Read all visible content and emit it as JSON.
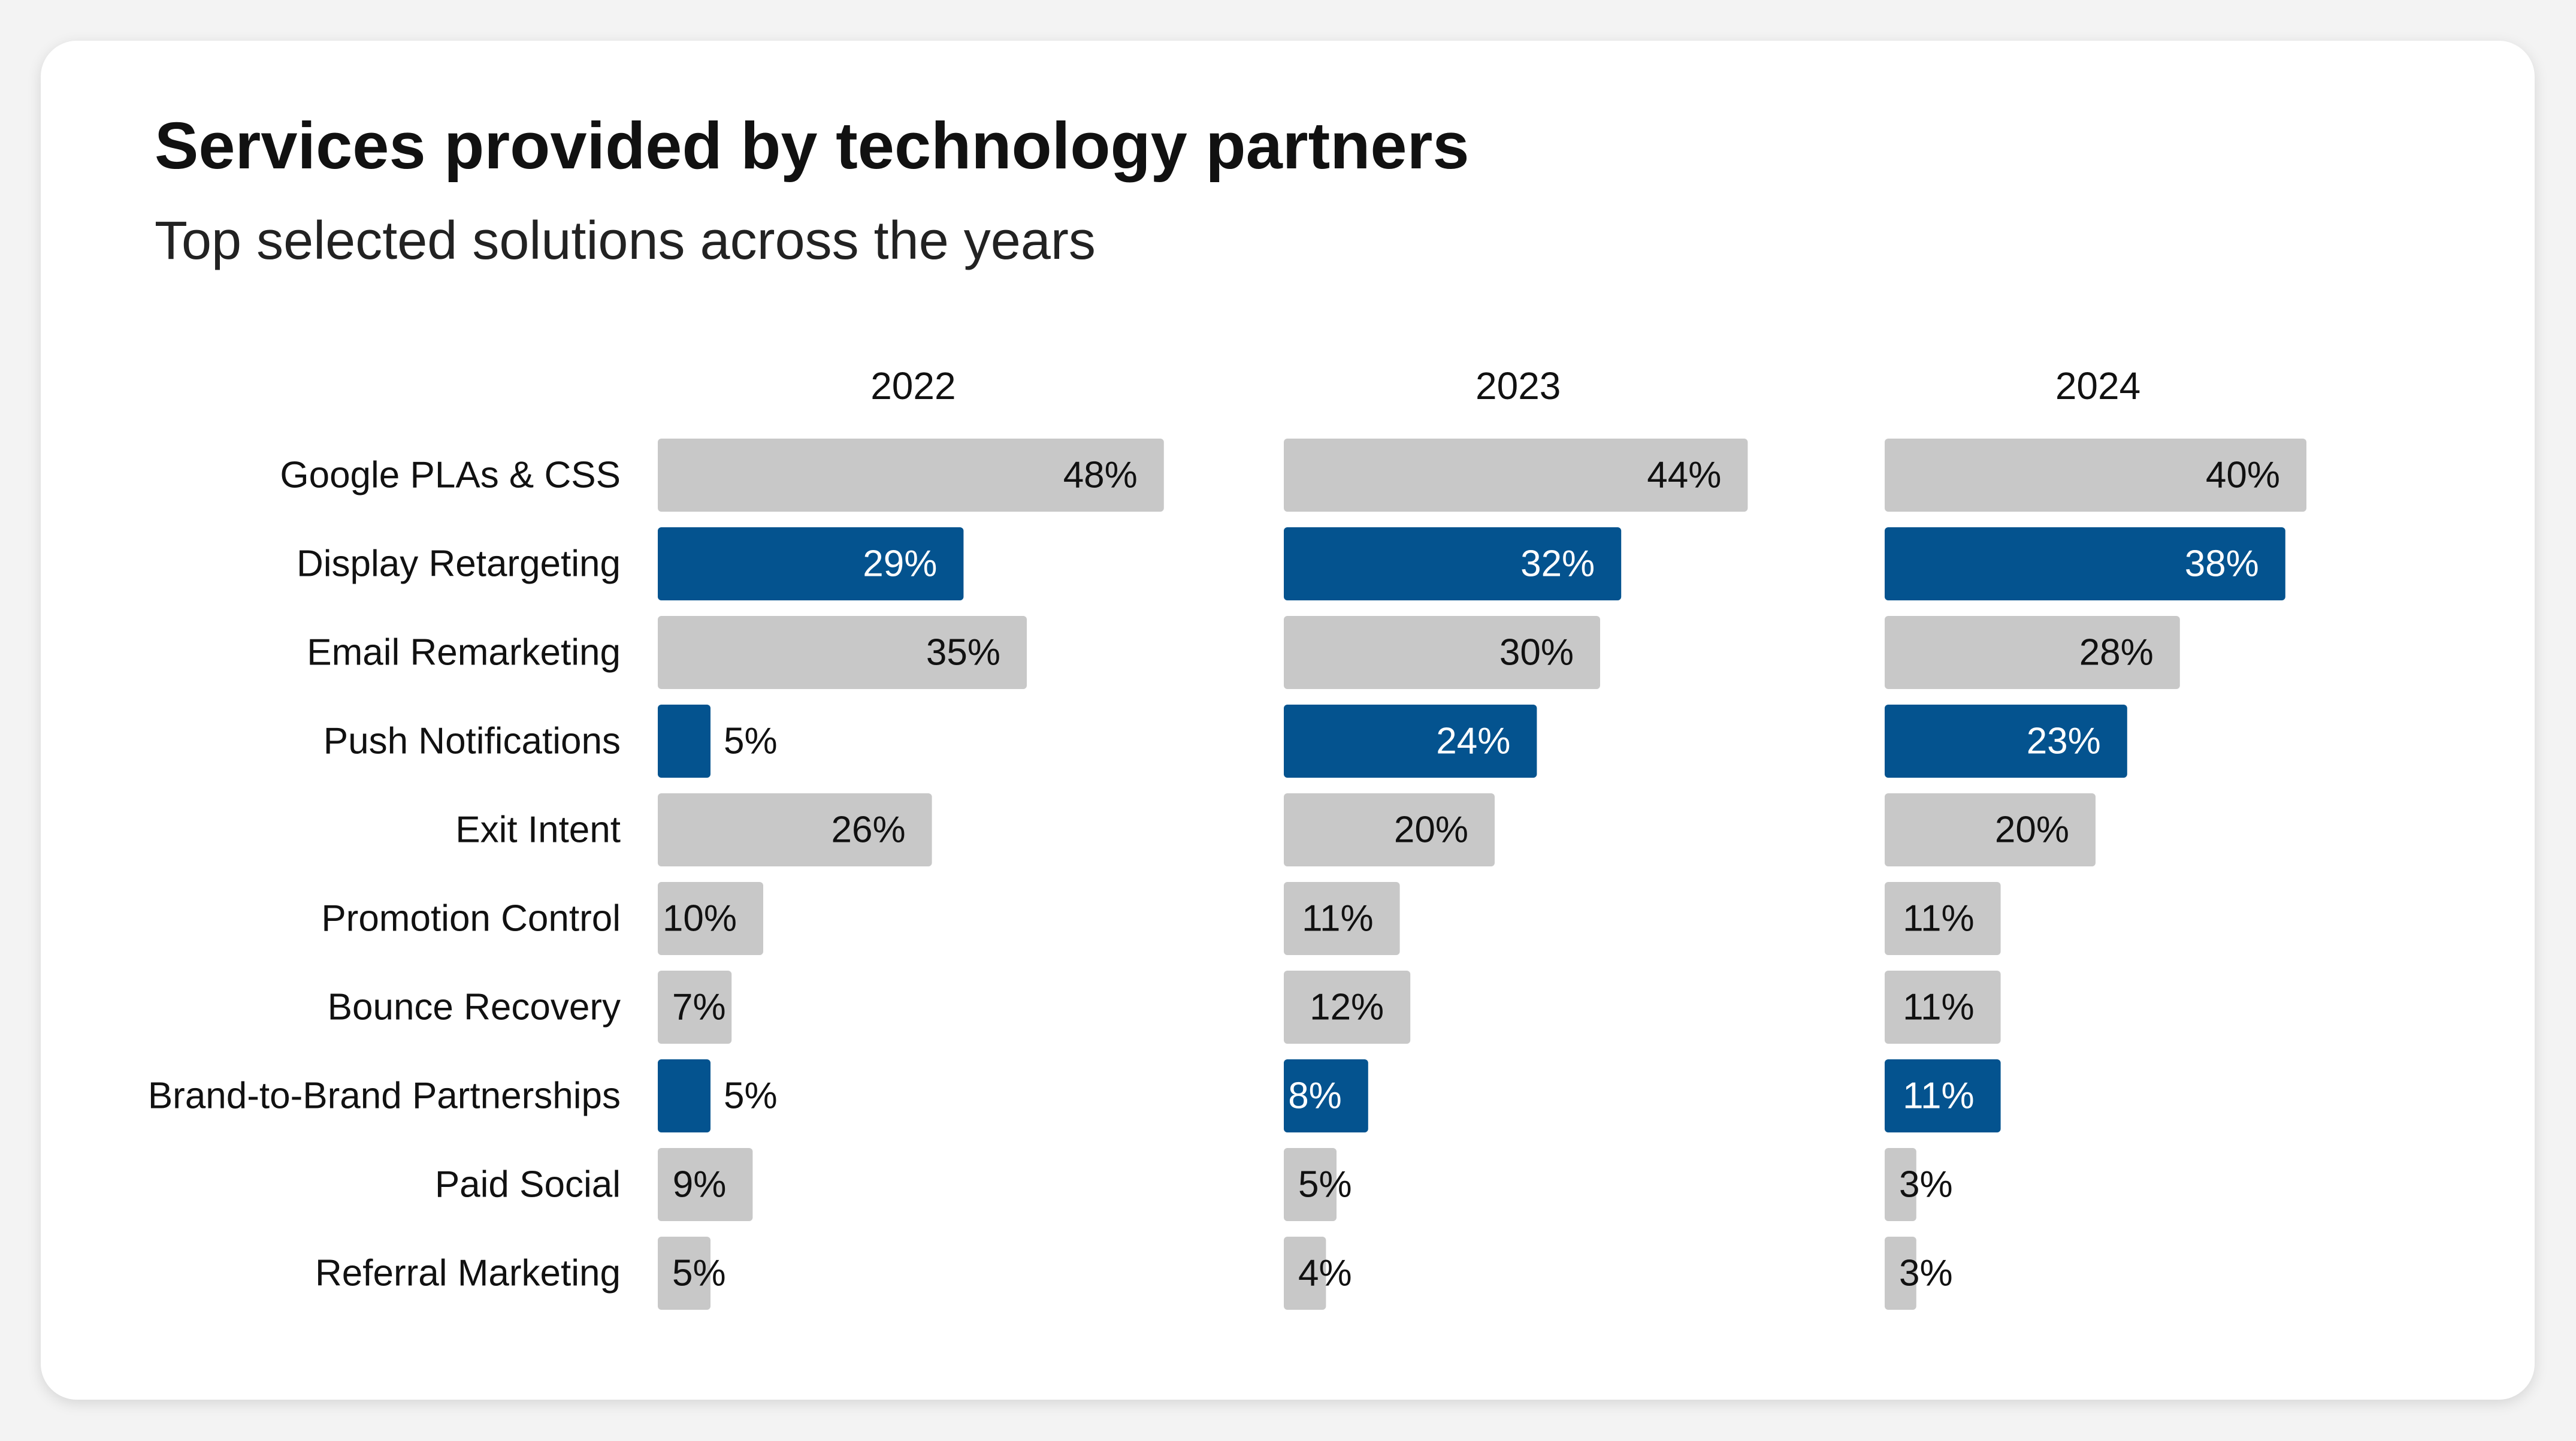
{
  "title": "Services provided by technology partners",
  "subtitle": "Top selected solutions across the years",
  "colors": {
    "background": "#f3f3f3",
    "card": "#ffffff",
    "bar_default": "#c8c8c8",
    "bar_highlight": "#04538f",
    "text_dark": "#111111",
    "text_on_highlight": "#ffffff"
  },
  "chart_data": {
    "type": "bar",
    "orientation": "horizontal",
    "layout": "small-multiples",
    "categories": [
      "Google PLAs & CSS",
      "Display Retargeting",
      "Email Remarketing",
      "Push Notifications",
      "Exit Intent",
      "Promotion Control",
      "Bounce Recovery",
      "Brand-to-Brand Partnerships",
      "Paid Social",
      "Referral Marketing"
    ],
    "series": [
      {
        "name": "2022",
        "values": [
          48,
          29,
          35,
          5,
          26,
          10,
          7,
          5,
          9,
          5
        ],
        "labels": [
          "48%",
          "29%",
          "35%",
          "5%",
          "26%",
          "10%",
          "7%",
          "5%",
          "9%",
          "5%"
        ],
        "highlighted": [
          false,
          true,
          false,
          true,
          false,
          false,
          false,
          true,
          false,
          false
        ]
      },
      {
        "name": "2023",
        "values": [
          44,
          32,
          30,
          24,
          20,
          11,
          12,
          8,
          5,
          4
        ],
        "labels": [
          "44%",
          "32%",
          "30%",
          "24%",
          "20%",
          "11%",
          "12%",
          "8%",
          "5%",
          "4%"
        ],
        "highlighted": [
          false,
          true,
          false,
          true,
          false,
          false,
          false,
          true,
          false,
          false
        ]
      },
      {
        "name": "2024",
        "values": [
          40,
          38,
          28,
          23,
          20,
          11,
          11,
          11,
          3,
          3
        ],
        "labels": [
          "40%",
          "38%",
          "28%",
          "23%",
          "20%",
          "11%",
          "11%",
          "11%",
          "3%",
          "3%"
        ],
        "highlighted": [
          false,
          true,
          false,
          true,
          false,
          false,
          false,
          true,
          false,
          false
        ]
      }
    ],
    "value_unit": "%",
    "grid": false,
    "legend": "none"
  }
}
